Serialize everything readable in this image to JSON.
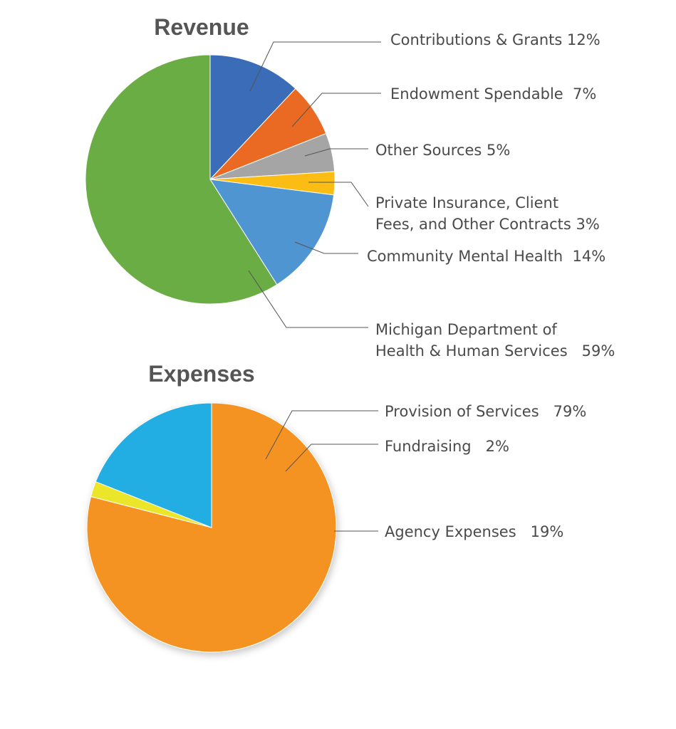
{
  "chart_data": [
    {
      "type": "pie",
      "title": "Revenue",
      "slices": [
        {
          "label_lines": [
            "Contributions & Grants 12%"
          ],
          "value": 12,
          "color": "#3a6cb7"
        },
        {
          "label_lines": [
            "Endowment Spendable  7%"
          ],
          "value": 7,
          "color": "#ea6a23"
        },
        {
          "label_lines": [
            "Other Sources 5%"
          ],
          "value": 5,
          "color": "#a5a5a5"
        },
        {
          "label_lines": [
            "Private Insurance, Client",
            "Fees, and Other Contracts 3%"
          ],
          "value": 3,
          "color": "#fbbd13"
        },
        {
          "label_lines": [
            "Community Mental Health  14%"
          ],
          "value": 14,
          "color": "#4f95d2"
        },
        {
          "label_lines": [
            "Michigan Department of",
            "Health & Human Services   59%"
          ],
          "value": 59,
          "color": "#6aad45"
        }
      ]
    },
    {
      "type": "pie",
      "title": "Expenses",
      "slices": [
        {
          "label_lines": [
            "Provision of Services   79%"
          ],
          "value": 79,
          "color": "#f59322"
        },
        {
          "label_lines": [
            "Fundraising   2%"
          ],
          "value": 2,
          "color": "#ebe62a"
        },
        {
          "label_lines": [
            "Agency Expenses   19%"
          ],
          "value": 19,
          "color": "#21ade3"
        }
      ]
    }
  ]
}
